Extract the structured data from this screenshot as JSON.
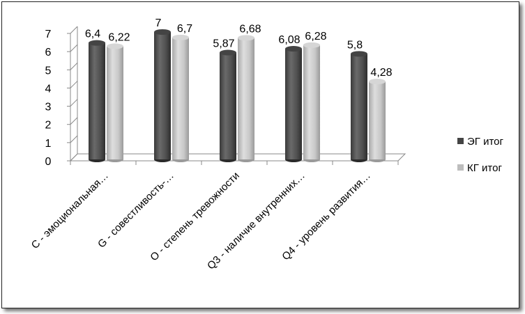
{
  "chart_data": {
    "type": "bar",
    "title": "",
    "xlabel": "",
    "ylabel": "",
    "ylim": [
      0,
      7
    ],
    "yticks": [
      0,
      1,
      2,
      3,
      4,
      5,
      6,
      7
    ],
    "categories": [
      "С - эмоциональная…",
      "G - совестливость-…",
      "О - степень тревожности",
      "Q3 - наличие внутренних…",
      "Q4 - уровень развития…"
    ],
    "series": [
      {
        "name": "ЭГ итог",
        "color": "#555555",
        "values": [
          6.4,
          7,
          5.87,
          6.08,
          5.8
        ],
        "labels": [
          "6,4",
          "7",
          "5,87",
          "6,08",
          "5,8"
        ]
      },
      {
        "name": "КГ итог",
        "color": "#bdbdbd",
        "values": [
          6.22,
          6.7,
          6.68,
          6.28,
          4.28
        ],
        "labels": [
          "6,22",
          "6,7",
          "6,68",
          "6,28",
          "4,28"
        ]
      }
    ],
    "legend_position": "right",
    "grid": false,
    "style": "3d-cylinder"
  }
}
